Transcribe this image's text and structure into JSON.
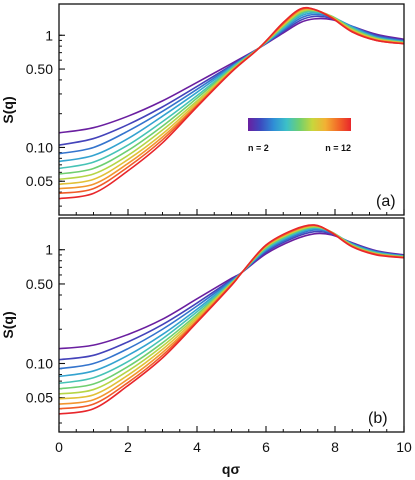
{
  "chart_data": [
    {
      "type": "line",
      "panel": "(a)",
      "ylabel": "S(q)",
      "xlabel": "",
      "xlim": [
        0,
        10
      ],
      "ylim": [
        0.025,
        1.9
      ],
      "yscale": "log",
      "y_ticks": [
        0.05,
        0.1,
        0.5,
        1
      ],
      "y_tick_labels": [
        "0.05",
        "0.10",
        "0.50",
        "1"
      ],
      "x_ticks": [
        0,
        2,
        4,
        6,
        8,
        10
      ],
      "x_tick_labels_shown": false,
      "colorbar": {
        "min_label": "n = 2",
        "max_label": "n = 12",
        "colormap": "rainbow",
        "placement": "center-right"
      },
      "series": [
        {
          "n": 2,
          "q": [
            0,
            1,
            2,
            3,
            4,
            5,
            5.8,
            6.5,
            7.0,
            7.4,
            7.9,
            8.5,
            9.2,
            10
          ],
          "S": [
            0.135,
            0.15,
            0.19,
            0.26,
            0.38,
            0.56,
            0.77,
            1.05,
            1.3,
            1.4,
            1.38,
            1.2,
            1.02,
            0.92
          ]
        },
        {
          "n": 3,
          "q": [
            0,
            1,
            2,
            3,
            4,
            5,
            5.8,
            6.5,
            7.0,
            7.4,
            7.9,
            8.5,
            9.2,
            10
          ],
          "S": [
            0.105,
            0.12,
            0.16,
            0.23,
            0.35,
            0.54,
            0.77,
            1.08,
            1.36,
            1.47,
            1.42,
            1.2,
            1.0,
            0.9
          ]
        },
        {
          "n": 4,
          "q": [
            0,
            1,
            2,
            3,
            4,
            5,
            5.8,
            6.5,
            7.0,
            7.4,
            7.9,
            8.5,
            9.2,
            10
          ],
          "S": [
            0.088,
            0.1,
            0.14,
            0.21,
            0.33,
            0.53,
            0.77,
            1.11,
            1.42,
            1.53,
            1.45,
            1.2,
            0.98,
            0.89
          ]
        },
        {
          "n": 5,
          "q": [
            0,
            1,
            2,
            3,
            4,
            5,
            5.8,
            6.5,
            7.0,
            7.4,
            7.9,
            8.5,
            9.2,
            10
          ],
          "S": [
            0.075,
            0.085,
            0.12,
            0.19,
            0.31,
            0.52,
            0.77,
            1.14,
            1.48,
            1.58,
            1.47,
            1.18,
            0.96,
            0.88
          ]
        },
        {
          "n": 6,
          "q": [
            0,
            1,
            2,
            3,
            4,
            5,
            5.8,
            6.5,
            7.0,
            7.4,
            7.9,
            8.5,
            9.2,
            10
          ],
          "S": [
            0.065,
            0.074,
            0.105,
            0.17,
            0.29,
            0.51,
            0.77,
            1.17,
            1.53,
            1.62,
            1.48,
            1.16,
            0.95,
            0.87
          ]
        },
        {
          "n": 7,
          "q": [
            0,
            1,
            2,
            3,
            4,
            5,
            5.8,
            6.5,
            7.0,
            7.4,
            7.9,
            8.5,
            9.2,
            10
          ],
          "S": [
            0.058,
            0.065,
            0.094,
            0.155,
            0.275,
            0.5,
            0.77,
            1.2,
            1.58,
            1.65,
            1.48,
            1.14,
            0.94,
            0.86
          ]
        },
        {
          "n": 8,
          "q": [
            0,
            1,
            2,
            3,
            4,
            5,
            5.8,
            6.5,
            7.0,
            7.4,
            7.9,
            8.5,
            9.2,
            10
          ],
          "S": [
            0.052,
            0.058,
            0.085,
            0.143,
            0.26,
            0.49,
            0.77,
            1.22,
            1.62,
            1.67,
            1.47,
            1.12,
            0.93,
            0.86
          ]
        },
        {
          "n": 9,
          "q": [
            0,
            1,
            2,
            3,
            4,
            5,
            5.8,
            6.5,
            7.0,
            7.4,
            7.9,
            8.5,
            9.2,
            10
          ],
          "S": [
            0.047,
            0.052,
            0.078,
            0.132,
            0.25,
            0.485,
            0.77,
            1.24,
            1.65,
            1.68,
            1.46,
            1.1,
            0.92,
            0.85
          ]
        },
        {
          "n": 10,
          "q": [
            0,
            1,
            2,
            3,
            4,
            5,
            5.8,
            6.5,
            7.0,
            7.4,
            7.9,
            8.5,
            9.2,
            10
          ],
          "S": [
            0.043,
            0.047,
            0.072,
            0.124,
            0.24,
            0.48,
            0.77,
            1.26,
            1.68,
            1.69,
            1.45,
            1.09,
            0.91,
            0.85
          ]
        },
        {
          "n": 11,
          "q": [
            0,
            1,
            2,
            3,
            4,
            5,
            5.8,
            6.5,
            7.0,
            7.4,
            7.9,
            8.5,
            9.2,
            10
          ],
          "S": [
            0.039,
            0.043,
            0.067,
            0.117,
            0.235,
            0.475,
            0.77,
            1.28,
            1.7,
            1.7,
            1.44,
            1.08,
            0.9,
            0.84
          ]
        },
        {
          "n": 12,
          "q": [
            0,
            1,
            2,
            3,
            4,
            5,
            5.8,
            6.5,
            7.0,
            7.4,
            7.9,
            8.5,
            9.2,
            10
          ],
          "S": [
            0.035,
            0.039,
            0.062,
            0.11,
            0.23,
            0.47,
            0.77,
            1.3,
            1.72,
            1.7,
            1.43,
            1.07,
            0.9,
            0.84
          ]
        }
      ]
    },
    {
      "type": "line",
      "panel": "(b)",
      "ylabel": "S(q)",
      "xlabel": "qσ",
      "xlim": [
        0,
        10
      ],
      "ylim": [
        0.025,
        1.9
      ],
      "yscale": "log",
      "y_ticks": [
        0.05,
        0.1,
        0.5,
        1
      ],
      "y_tick_labels": [
        "0.05",
        "0.10",
        "0.50",
        "1"
      ],
      "x_ticks": [
        0,
        2,
        4,
        6,
        8,
        10
      ],
      "x_tick_labels": [
        "0",
        "2",
        "4",
        "6",
        "8",
        "10"
      ],
      "series": [
        {
          "n": 2,
          "q": [
            0,
            1,
            2,
            3,
            4,
            5,
            5.3,
            6.0,
            6.8,
            7.4,
            7.9,
            8.5,
            9.2,
            10
          ],
          "S": [
            0.135,
            0.145,
            0.18,
            0.245,
            0.37,
            0.56,
            0.63,
            0.92,
            1.22,
            1.38,
            1.35,
            1.15,
            0.98,
            0.9
          ]
        },
        {
          "n": 3,
          "q": [
            0,
            1,
            2,
            3,
            4,
            5,
            5.3,
            6.0,
            6.8,
            7.4,
            7.9,
            8.5,
            9.2,
            10
          ],
          "S": [
            0.108,
            0.118,
            0.155,
            0.22,
            0.34,
            0.545,
            0.63,
            0.95,
            1.27,
            1.44,
            1.38,
            1.14,
            0.97,
            0.89
          ]
        },
        {
          "n": 4,
          "q": [
            0,
            1,
            2,
            3,
            4,
            5,
            5.3,
            6.0,
            6.8,
            7.4,
            7.9,
            8.5,
            9.2,
            10
          ],
          "S": [
            0.09,
            0.1,
            0.135,
            0.2,
            0.32,
            0.535,
            0.63,
            0.98,
            1.31,
            1.49,
            1.4,
            1.13,
            0.96,
            0.88
          ]
        },
        {
          "n": 5,
          "q": [
            0,
            1,
            2,
            3,
            4,
            5,
            5.3,
            6.0,
            6.8,
            7.4,
            7.9,
            8.5,
            9.2,
            10
          ],
          "S": [
            0.077,
            0.086,
            0.118,
            0.18,
            0.3,
            0.525,
            0.63,
            1.0,
            1.35,
            1.53,
            1.42,
            1.12,
            0.95,
            0.88
          ]
        },
        {
          "n": 6,
          "q": [
            0,
            1,
            2,
            3,
            4,
            5,
            5.3,
            6.0,
            6.8,
            7.4,
            7.9,
            8.5,
            9.2,
            10
          ],
          "S": [
            0.067,
            0.075,
            0.104,
            0.165,
            0.285,
            0.515,
            0.63,
            1.02,
            1.38,
            1.56,
            1.43,
            1.11,
            0.94,
            0.87
          ]
        },
        {
          "n": 7,
          "q": [
            0,
            1,
            2,
            3,
            4,
            5,
            5.3,
            6.0,
            6.8,
            7.4,
            7.9,
            8.5,
            9.2,
            10
          ],
          "S": [
            0.06,
            0.066,
            0.094,
            0.152,
            0.27,
            0.51,
            0.63,
            1.04,
            1.41,
            1.58,
            1.43,
            1.1,
            0.93,
            0.87
          ]
        },
        {
          "n": 8,
          "q": [
            0,
            1,
            2,
            3,
            4,
            5,
            5.3,
            6.0,
            6.8,
            7.4,
            7.9,
            8.5,
            9.2,
            10
          ],
          "S": [
            0.054,
            0.059,
            0.086,
            0.142,
            0.26,
            0.505,
            0.63,
            1.06,
            1.43,
            1.6,
            1.43,
            1.09,
            0.92,
            0.86
          ]
        },
        {
          "n": 9,
          "q": [
            0,
            1,
            2,
            3,
            4,
            5,
            5.3,
            6.0,
            6.8,
            7.4,
            7.9,
            8.5,
            9.2,
            10
          ],
          "S": [
            0.049,
            0.053,
            0.079,
            0.133,
            0.25,
            0.5,
            0.63,
            1.07,
            1.45,
            1.62,
            1.43,
            1.08,
            0.92,
            0.86
          ]
        },
        {
          "n": 10,
          "q": [
            0,
            1,
            2,
            3,
            4,
            5,
            5.3,
            6.0,
            6.8,
            7.4,
            7.9,
            8.5,
            9.2,
            10
          ],
          "S": [
            0.044,
            0.048,
            0.073,
            0.125,
            0.24,
            0.495,
            0.63,
            1.08,
            1.47,
            1.63,
            1.42,
            1.07,
            0.91,
            0.86
          ]
        },
        {
          "n": 11,
          "q": [
            0,
            1,
            2,
            3,
            4,
            5,
            5.3,
            6.0,
            6.8,
            7.4,
            7.9,
            8.5,
            9.2,
            10
          ],
          "S": [
            0.04,
            0.044,
            0.068,
            0.118,
            0.235,
            0.49,
            0.63,
            1.09,
            1.48,
            1.64,
            1.42,
            1.07,
            0.91,
            0.85
          ]
        },
        {
          "n": 12,
          "q": [
            0,
            1,
            2,
            3,
            4,
            5,
            5.3,
            6.0,
            6.8,
            7.4,
            7.9,
            8.5,
            9.2,
            10
          ],
          "S": [
            0.036,
            0.04,
            0.064,
            0.112,
            0.23,
            0.485,
            0.63,
            1.1,
            1.5,
            1.65,
            1.41,
            1.06,
            0.9,
            0.85
          ]
        }
      ]
    }
  ],
  "colors": {
    "colormap_stops": [
      "#6a1fa0",
      "#3b4cc0",
      "#2f8fd6",
      "#3cc0c8",
      "#6fcf70",
      "#c8d63c",
      "#f2b134",
      "#f26a28",
      "#e8262b"
    ]
  }
}
